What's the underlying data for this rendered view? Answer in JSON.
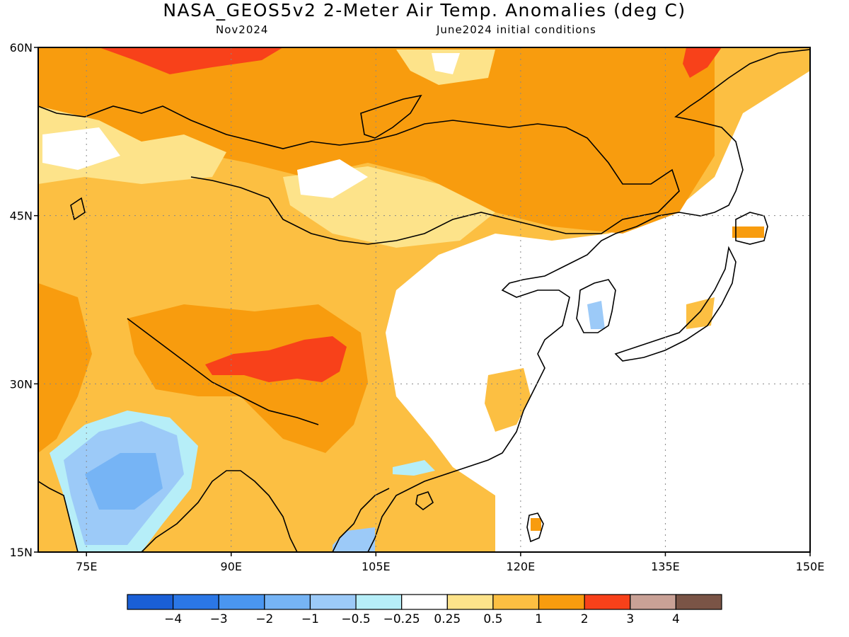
{
  "title": "NASA_GEOS5v2 2-Meter Air Temp. Anomalies (deg C)",
  "subtitle_left": "Nov2024",
  "subtitle_right": "June2024 initial conditions",
  "map": {
    "region": "East Asia",
    "lon_range": [
      70,
      150
    ],
    "lat_range": [
      15,
      60
    ],
    "grid": true,
    "lat_ticks": [
      {
        "value": 60,
        "label": "60N"
      },
      {
        "value": 45,
        "label": "45N"
      },
      {
        "value": 30,
        "label": "30N"
      },
      {
        "value": 15,
        "label": "15N"
      }
    ],
    "lon_ticks": [
      {
        "value": 75,
        "label": "75E"
      },
      {
        "value": 90,
        "label": "90E"
      },
      {
        "value": 105,
        "label": "105E"
      },
      {
        "value": 120,
        "label": "120E"
      },
      {
        "value": 135,
        "label": "135E"
      },
      {
        "value": 150,
        "label": "150E"
      }
    ]
  },
  "colorbar": {
    "colors": [
      "#1a5fd6",
      "#2b77e6",
      "#4a96f0",
      "#76b4f5",
      "#9ccaf8",
      "#b6eef8",
      "#ffffff",
      "#fde38a",
      "#fcbf42",
      "#f89c0e",
      "#f8411a",
      "#c9a196",
      "#7a5446"
    ],
    "labels": [
      "−4",
      "−3",
      "−2",
      "−1",
      "−0.5",
      "−0.25",
      "0.25",
      "0.5",
      "1",
      "2",
      "3",
      "4"
    ]
  }
}
